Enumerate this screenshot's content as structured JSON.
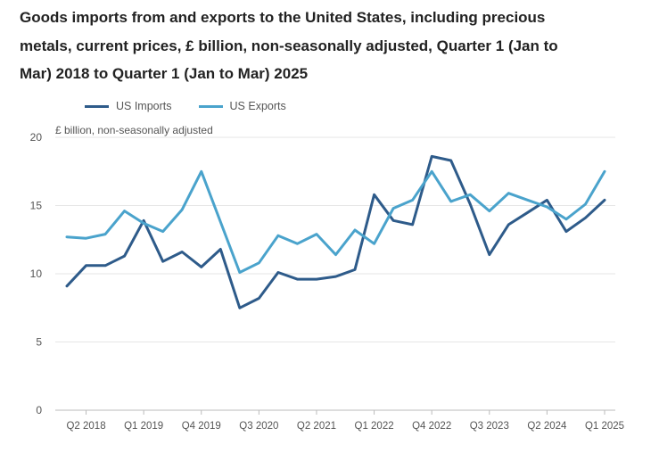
{
  "chart_data": {
    "type": "line",
    "title": "Goods imports from and exports to the United States, including precious metals, current prices, £ billion, non-seasonally adjusted, Quarter 1 (Jan to Mar) 2018 to Quarter 1 (Jan to Mar) 2025",
    "ylabel": "£ billion, non-seasonally adjusted",
    "xlabel": "",
    "ylim": [
      0,
      20
    ],
    "yticks": [
      0,
      5,
      10,
      15,
      20
    ],
    "grid": true,
    "legend_position": "top-left",
    "x": [
      "Q1 2018",
      "Q2 2018",
      "Q3 2018",
      "Q4 2018",
      "Q1 2019",
      "Q2 2019",
      "Q3 2019",
      "Q4 2019",
      "Q1 2020",
      "Q2 2020",
      "Q3 2020",
      "Q4 2020",
      "Q1 2021",
      "Q2 2021",
      "Q3 2021",
      "Q4 2021",
      "Q1 2022",
      "Q2 2022",
      "Q3 2022",
      "Q4 2022",
      "Q1 2023",
      "Q2 2023",
      "Q3 2023",
      "Q4 2023",
      "Q1 2024",
      "Q2 2024",
      "Q3 2024",
      "Q4 2024",
      "Q1 2025"
    ],
    "x_tick_labels": [
      "Q2 2018",
      "Q1 2019",
      "Q4 2019",
      "Q3 2020",
      "Q2 2021",
      "Q1 2022",
      "Q4 2022",
      "Q3 2023",
      "Q2 2024",
      "Q1 2025"
    ],
    "series": [
      {
        "name": "US Imports",
        "color": "#2e5b8a",
        "values": [
          9.1,
          10.6,
          10.6,
          11.3,
          13.9,
          10.9,
          11.6,
          10.5,
          11.8,
          7.5,
          8.2,
          10.1,
          9.6,
          9.6,
          9.8,
          10.3,
          15.8,
          13.9,
          13.6,
          18.6,
          18.3,
          15.1,
          11.4,
          13.6,
          14.5,
          15.4,
          13.1,
          14.1,
          15.4
        ]
      },
      {
        "name": "US Exports",
        "color": "#4aa3cc",
        "values": [
          12.7,
          12.6,
          12.9,
          14.6,
          13.7,
          13.1,
          14.7,
          17.5,
          13.8,
          10.1,
          10.8,
          12.8,
          12.2,
          12.9,
          11.4,
          13.2,
          12.2,
          14.8,
          15.4,
          17.5,
          15.3,
          15.8,
          14.6,
          15.9,
          15.4,
          14.9,
          14.0,
          15.1,
          17.5
        ]
      }
    ]
  }
}
